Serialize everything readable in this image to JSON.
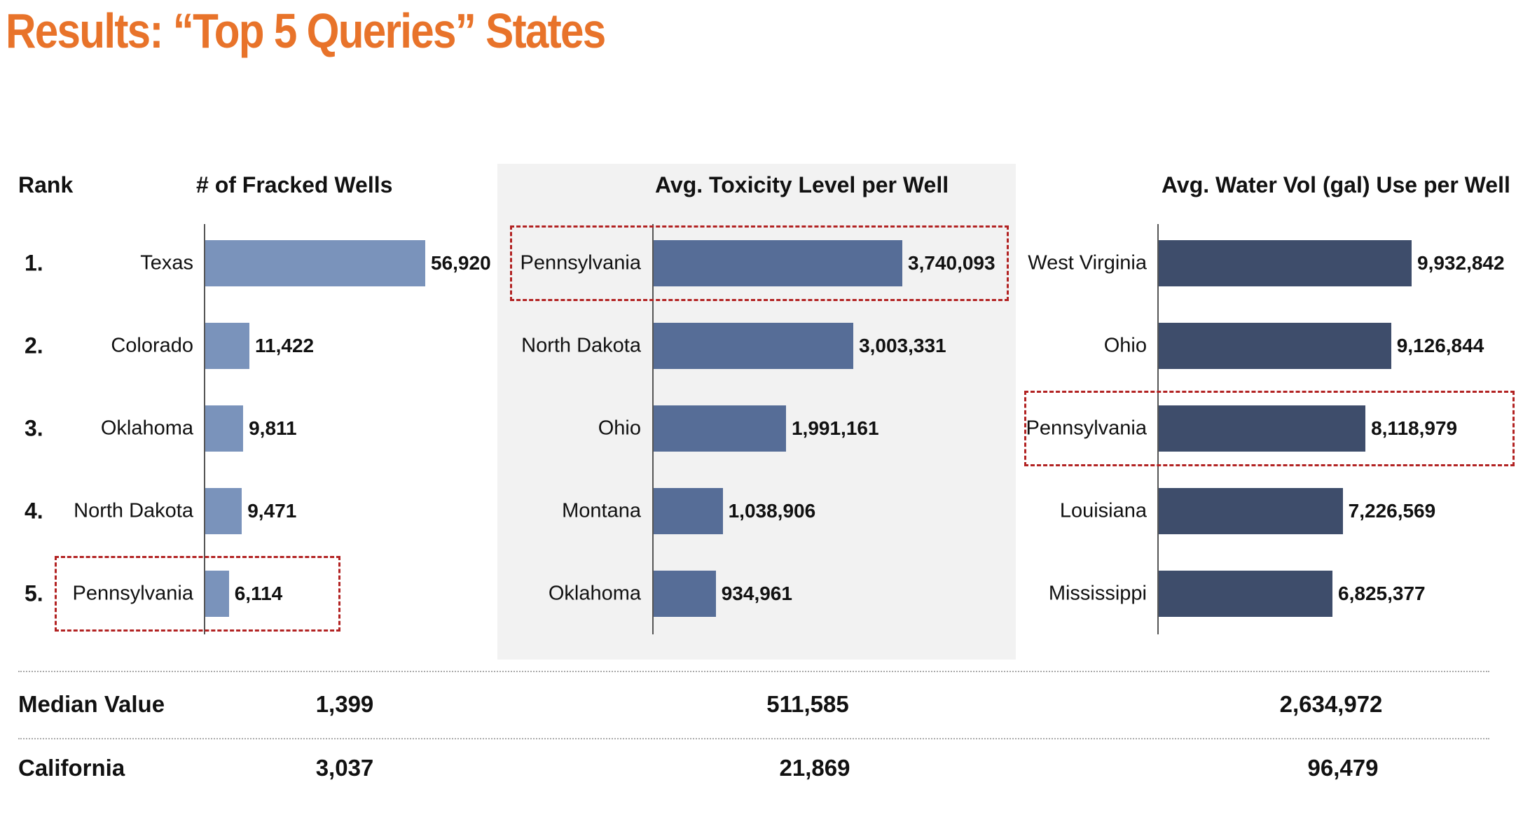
{
  "title": "Results: “Top 5 Queries” States",
  "rank_header": "Rank",
  "ranks": [
    "1.",
    "2.",
    "3.",
    "4.",
    "5."
  ],
  "colors": {
    "title": "#e8732a",
    "highlight": "#b22222",
    "panel_bg": "#f2f2f2"
  },
  "chart_data": [
    {
      "type": "bar",
      "orientation": "horizontal",
      "title": "# of Fracked Wells",
      "color": "#7a93bb",
      "categories": [
        "Texas",
        "Colorado",
        "Oklahoma",
        "North Dakota",
        "Pennsylvania"
      ],
      "values": [
        56920,
        11422,
        9811,
        9471,
        6114
      ],
      "labels": [
        "56,920",
        "11,422",
        "9,811",
        "9,471",
        "6,114"
      ],
      "highlight_index": 4
    },
    {
      "type": "bar",
      "orientation": "horizontal",
      "title": "Avg. Toxicity Level per Well",
      "color": "#566d97",
      "categories": [
        "Pennsylvania",
        "North Dakota",
        "Ohio",
        "Montana",
        "Oklahoma"
      ],
      "values": [
        3740093,
        3003331,
        1991161,
        1038906,
        934961
      ],
      "labels": [
        "3,740,093",
        "3,003,331",
        "1,991,161",
        "1,038,906",
        "934,961"
      ],
      "highlight_index": 0
    },
    {
      "type": "bar",
      "orientation": "horizontal",
      "title": "Avg. Water Vol (gal) Use per Well",
      "color": "#3e4d6b",
      "categories": [
        "West Virginia",
        "Ohio",
        "Pennsylvania",
        "Louisiana",
        "Mississippi"
      ],
      "values": [
        9932842,
        9126844,
        8118979,
        7226569,
        6825377
      ],
      "labels": [
        "9,932,842",
        "9,126,844",
        "8,118,979",
        "7,226,569",
        "6,825,377"
      ],
      "highlight_index": 2
    }
  ],
  "summary": [
    {
      "label": "Median Value",
      "values": [
        "1,399",
        "511,585",
        "2,634,972"
      ]
    },
    {
      "label": "California",
      "values": [
        "3,037",
        "21,869",
        "96,479"
      ]
    }
  ]
}
